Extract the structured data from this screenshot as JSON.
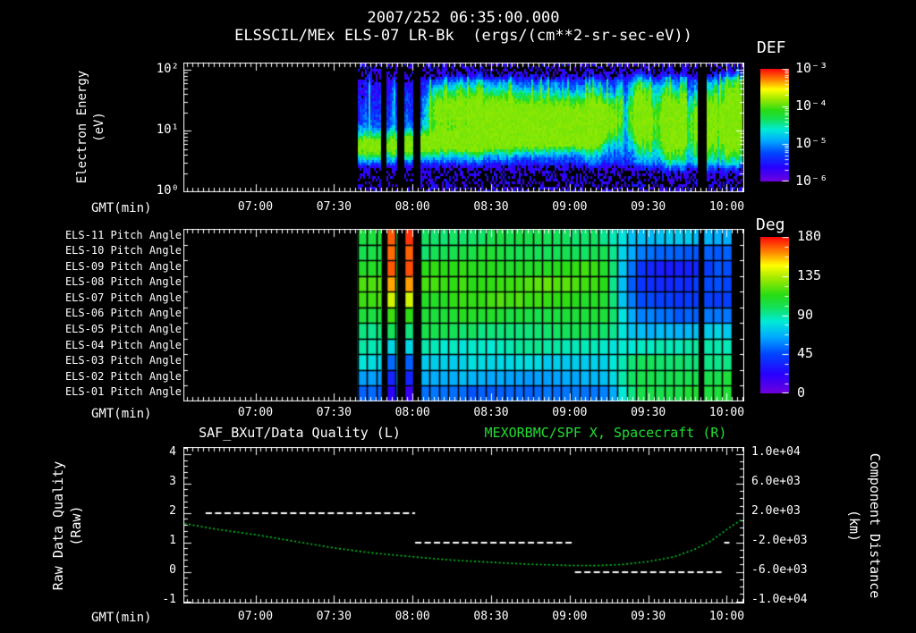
{
  "colors": {
    "background": "#000000",
    "text": "#ffffff",
    "green_text": "#22dd33",
    "axis": "#ffffff",
    "quality_line": "#ffffff",
    "distance_curve": "#00cc22",
    "grid": "#000000"
  },
  "header": {
    "title": "2007/252 06:35:00.000",
    "subtitle": "ELSSCIL/MEx ELS-07 LR-Bk  (ergs/(cm**2-sr-sec-eV))"
  },
  "time_axis": {
    "label": "GMT(min)",
    "tick_labels": [
      "07:00",
      "07:30",
      "08:00",
      "08:30",
      "09:00",
      "09:30",
      "10:00"
    ],
    "minor_tick_minutes": 2,
    "view_start": "06:33",
    "view_end": "10:07"
  },
  "chart_data": [
    {
      "id": "electron-energy-spectrogram",
      "type": "heatmap",
      "ylabel": "Electron Energy",
      "ylabel_units": "(eV)",
      "yscale": "log",
      "ylim_eV": [
        1,
        130
      ],
      "ytick_values": [
        1,
        10,
        100
      ],
      "ytick_labels": [
        "10⁰",
        "10¹",
        "10²"
      ],
      "colorbar": {
        "title": "DEF",
        "tick_labels": [
          "10⁻³",
          "10⁻⁴",
          "10⁻⁵",
          "10⁻⁶"
        ],
        "log10_flux_range": [
          -6,
          -3
        ]
      },
      "segments": [
        [
          "07:39",
          "07:48"
        ],
        [
          "07:50",
          "07:54"
        ],
        [
          "07:57",
          "08:00"
        ],
        [
          "08:03",
          "09:49"
        ],
        [
          "09:52",
          "10:06"
        ]
      ],
      "model": {
        "background_log10": -6.55,
        "thermal_band": {
          "t0": "07:39",
          "t1": "09:14",
          "logE_start": 0.76,
          "logE_end": 0.97,
          "width": 0.16,
          "amp": 1.95
        },
        "suprathermal_band": {
          "t0": "08:03",
          "logE_center": 1.3,
          "width": 0.3,
          "amp": 2.08,
          "streaky_after": "09:18"
        },
        "broad_band": {
          "logE_center": 1.05,
          "width": 0.6,
          "amp": 0.85
        }
      },
      "bright_streaks": [
        {
          "t": "08:24",
          "w": 1.5,
          "a": 0.4
        },
        {
          "t": "08:37",
          "w": 1.5,
          "a": 0.35
        },
        {
          "t": "09:09",
          "w": 2,
          "a": 0.9
        },
        {
          "t": "09:31",
          "w": 3,
          "a": 0.7
        },
        {
          "t": "09:40",
          "w": 4,
          "a": 0.75
        },
        {
          "t": "09:57",
          "w": 4,
          "a": 1.15
        },
        {
          "t": "10:03",
          "w": 3,
          "a": 1.05
        }
      ]
    },
    {
      "id": "pitch-angle-grid",
      "type": "heatmap",
      "rows": [
        "ELS-11 Pitch Angle",
        "ELS-10 Pitch Angle",
        "ELS-09 Pitch Angle",
        "ELS-08 Pitch Angle",
        "ELS-07 Pitch Angle",
        "ELS-06 Pitch Angle",
        "ELS-05 Pitch Angle",
        "ELS-04 Pitch Angle",
        "ELS-03 Pitch Angle",
        "ELS-02 Pitch Angle",
        "ELS-01 Pitch Angle"
      ],
      "colorbar": {
        "title": "Deg",
        "ticks": [
          180,
          135,
          90,
          45,
          0
        ],
        "range": [
          0,
          180
        ]
      },
      "segments": [
        [
          "07:39",
          "07:48"
        ],
        [
          "07:50",
          "07:54"
        ],
        [
          "07:57",
          "08:00"
        ],
        [
          "08:03",
          "09:49"
        ],
        [
          "09:51",
          "10:02"
        ]
      ],
      "profile_main_deg": [
        100,
        102,
        112,
        118,
        115,
        106,
        97,
        87,
        76,
        65,
        52
      ],
      "profile_late_deg": [
        68,
        55,
        46,
        44,
        48,
        58,
        72,
        85,
        95,
        103,
        104
      ],
      "transition_window": [
        "09:10",
        "09:28"
      ],
      "dark_patch": {
        "t_center": "09:40",
        "sigma_min": 9,
        "delta_deg": -11,
        "row_weights": [
          0,
          0.5,
          1,
          1,
          1,
          0.5,
          0.15,
          0,
          0,
          0,
          0
        ]
      },
      "stripe_windows": [
        [
          "07:50",
          "07:53"
        ],
        [
          "07:57",
          "07:59"
        ]
      ],
      "stripe_profile_deg": [
        172,
        170,
        168,
        158,
        140,
        118,
        96,
        74,
        54,
        34,
        18
      ]
    },
    {
      "id": "quality-and-distance",
      "type": "line",
      "title_left": "SAF_BXuT/Data Quality (L)",
      "title_right": "MEXORBMC/SPF X, Spacecraft (R)",
      "ylabel_left": "Raw Data Quality",
      "ylabel_left_units": "(Raw)",
      "ylabel_right": "Component Distance",
      "ylabel_right_units": "(km)",
      "yticks_left": [
        "4",
        "3",
        "2",
        "1",
        "0",
        "-1"
      ],
      "yticks_right": [
        "1.0e+04",
        "6.0e+03",
        "2.0e+03",
        "-2.0e+03",
        "-6.0e+03",
        "-1.0e+04"
      ],
      "series": [
        {
          "name": "raw-data-quality",
          "axis": "left",
          "style": "dashed",
          "color": "#ffffff",
          "segments": [
            {
              "t0": "06:41",
              "t1": "08:01",
              "value": 2
            },
            {
              "t0": "08:01",
              "t1": "09:02",
              "value": 1
            },
            {
              "t0": "09:02",
              "t1": "09:58",
              "value": 0
            },
            {
              "t0": "09:59",
              "t1": "10:01",
              "value": 1
            }
          ]
        },
        {
          "name": "spacecraft-x-component-distance",
          "axis": "right",
          "style": "dotted",
          "color": "#00cc22",
          "points": [
            [
              "06:33",
              550
            ],
            [
              "06:45",
              -200
            ],
            [
              "07:00",
              -950
            ],
            [
              "07:15",
              -1850
            ],
            [
              "07:30",
              -2750
            ],
            [
              "07:45",
              -3450
            ],
            [
              "08:00",
              -3950
            ],
            [
              "08:15",
              -4400
            ],
            [
              "08:30",
              -4700
            ],
            [
              "08:45",
              -4980
            ],
            [
              "09:00",
              -5130
            ],
            [
              "09:10",
              -5150
            ],
            [
              "09:20",
              -5000
            ],
            [
              "09:30",
              -4600
            ],
            [
              "09:40",
              -3950
            ],
            [
              "09:48",
              -2900
            ],
            [
              "09:54",
              -1800
            ],
            [
              "10:00",
              -250
            ],
            [
              "10:06",
              1200
            ]
          ]
        }
      ]
    }
  ]
}
